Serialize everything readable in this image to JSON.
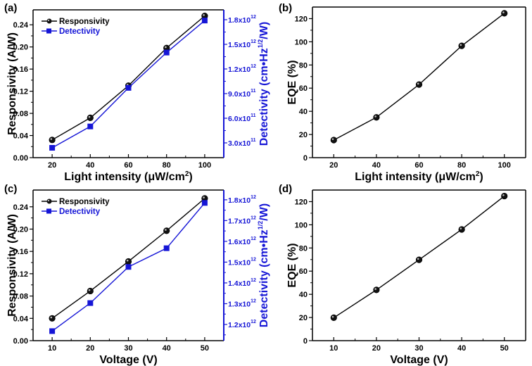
{
  "figure": {
    "description": "Four-panel photodetector performance figure"
  },
  "colors": {
    "responsivity": "#000000",
    "detectivity": "#1515d6",
    "eqe": "#000000",
    "axis": "#000000",
    "right_axis": "#1515d6"
  },
  "chart_data": [
    {
      "id": "a",
      "panel_label": "(a)",
      "type": "line",
      "xlabel": "Light intensity (μW/cm²)",
      "ylabel": "Responsivity (A/W)",
      "y2label": "Detectivity (cm•Hz¹ᐟ²/W)",
      "xlim": [
        10,
        110
      ],
      "ylim": [
        0,
        0.267
      ],
      "y2lim": [
        120000000000.0,
        1920000000000.0
      ],
      "xticks": [
        20,
        40,
        60,
        80,
        100
      ],
      "xtick_labels": [
        "20",
        "40",
        "60",
        "80",
        "100"
      ],
      "xminor": [
        30,
        50,
        70,
        90
      ],
      "yticks": [
        0,
        0.04,
        0.08,
        0.12,
        0.16,
        0.2,
        0.24
      ],
      "ytick_labels": [
        "0.00",
        "0.04",
        "0.08",
        "0.12",
        "0.16",
        "0.20",
        "0.24"
      ],
      "yminor": [
        0.02,
        0.06,
        0.1,
        0.14,
        0.18,
        0.22
      ],
      "y2ticks": [
        300000000000.0,
        600000000000.0,
        900000000000.0,
        1200000000000.0,
        1500000000000.0,
        1800000000000.0
      ],
      "y2tick_labels": [
        [
          "3.0x10",
          "11"
        ],
        [
          "6.0x10",
          "11"
        ],
        [
          "9.0x10",
          "11"
        ],
        [
          "1.2x10",
          "12"
        ],
        [
          "1.5x10",
          "12"
        ],
        [
          "1.8x10",
          "12"
        ]
      ],
      "y2minor": [
        450000000000.0,
        750000000000.0,
        1050000000000.0,
        1350000000000.0,
        1650000000000.0
      ],
      "legend": [
        "Responsivity",
        "Detectivity"
      ],
      "legend_position": "top-left",
      "grid": false,
      "series": [
        {
          "name": "Responsivity",
          "axis": "left",
          "marker": "circle",
          "x": [
            20,
            40,
            60,
            80,
            100
          ],
          "values": [
            0.032,
            0.072,
            0.13,
            0.198,
            0.256
          ]
        },
        {
          "name": "Detectivity",
          "axis": "right",
          "marker": "square",
          "x": [
            20,
            40,
            60,
            80,
            100
          ],
          "values": [
            240000000000.0,
            500000000000.0,
            970000000000.0,
            1400000000000.0,
            1790000000000.0
          ]
        }
      ]
    },
    {
      "id": "b",
      "panel_label": "(b)",
      "type": "line",
      "xlabel": "Light intensity (μW/cm²)",
      "ylabel": "EQE (%)",
      "xlim": [
        10,
        110
      ],
      "ylim": [
        0,
        130
      ],
      "xticks": [
        20,
        40,
        60,
        80,
        100
      ],
      "xtick_labels": [
        "20",
        "40",
        "60",
        "80",
        "100"
      ],
      "xminor": [
        30,
        50,
        70,
        90
      ],
      "yticks": [
        0,
        20,
        40,
        60,
        80,
        100,
        120
      ],
      "ytick_labels": [
        "0",
        "20",
        "40",
        "60",
        "80",
        "100",
        "120"
      ],
      "yminor": [
        10,
        30,
        50,
        70,
        90,
        110
      ],
      "grid": false,
      "series": [
        {
          "name": "EQE",
          "axis": "left",
          "marker": "circle",
          "x": [
            20,
            40,
            60,
            80,
            100
          ],
          "values": [
            15.2,
            34.8,
            63.1,
            96.5,
            124.6
          ]
        }
      ]
    },
    {
      "id": "c",
      "panel_label": "(c)",
      "type": "line",
      "xlabel": "Voltage (V)",
      "ylabel": "Responsivity (A/W)",
      "y2label": "Detectivity (cm•Hz¹ᐟ²/W)",
      "xlim": [
        5,
        55
      ],
      "ylim": [
        0,
        0.27
      ],
      "y2lim": [
        1122000000000.0,
        1847000000000.0
      ],
      "xticks": [
        10,
        20,
        30,
        40,
        50
      ],
      "xtick_labels": [
        "10",
        "20",
        "30",
        "40",
        "50"
      ],
      "xminor": [
        15,
        25,
        35,
        45
      ],
      "yticks": [
        0,
        0.04,
        0.08,
        0.12,
        0.16,
        0.2,
        0.24
      ],
      "ytick_labels": [
        "0.00",
        "0.04",
        "0.08",
        "0.12",
        "0.16",
        "0.20",
        "0.24"
      ],
      "yminor": [
        0.02,
        0.06,
        0.1,
        0.14,
        0.18,
        0.22
      ],
      "y2ticks": [
        1200000000000.0,
        1300000000000.0,
        1400000000000.0,
        1500000000000.0,
        1600000000000.0,
        1700000000000.0,
        1800000000000.0
      ],
      "y2tick_labels": [
        [
          "1.2x10",
          "12"
        ],
        [
          "1.3x10",
          "12"
        ],
        [
          "1.4x10",
          "12"
        ],
        [
          "1.5x10",
          "12"
        ],
        [
          "1.6x10",
          "12"
        ],
        [
          "1.7x10",
          "12"
        ],
        [
          "1.8x10",
          "12"
        ]
      ],
      "y2minor": [
        1150000000000.0,
        1250000000000.0,
        1350000000000.0,
        1450000000000.0,
        1550000000000.0,
        1650000000000.0,
        1750000000000.0
      ],
      "legend": [
        "Responsivity",
        "Detectivity"
      ],
      "legend_position": "top-left",
      "grid": false,
      "series": [
        {
          "name": "Responsivity",
          "axis": "left",
          "marker": "circle",
          "x": [
            10,
            20,
            30,
            40,
            50
          ],
          "values": [
            0.04,
            0.089,
            0.142,
            0.197,
            0.255
          ]
        },
        {
          "name": "Detectivity",
          "axis": "right",
          "marker": "square",
          "x": [
            10,
            20,
            30,
            40,
            50
          ],
          "values": [
            1168000000000.0,
            1303000000000.0,
            1477000000000.0,
            1567000000000.0,
            1785000000000.0
          ]
        }
      ]
    },
    {
      "id": "d",
      "panel_label": "(d)",
      "type": "line",
      "xlabel": "Voltage (V)",
      "ylabel": "EQE (%)",
      "xlim": [
        5,
        55
      ],
      "ylim": [
        0,
        130
      ],
      "xticks": [
        10,
        20,
        30,
        40,
        50
      ],
      "xtick_labels": [
        "10",
        "20",
        "30",
        "40",
        "50"
      ],
      "xminor": [
        15,
        25,
        35,
        45
      ],
      "yticks": [
        0,
        20,
        40,
        60,
        80,
        100,
        120
      ],
      "ytick_labels": [
        "0",
        "20",
        "40",
        "60",
        "80",
        "100",
        "120"
      ],
      "yminor": [
        10,
        30,
        50,
        70,
        90,
        110
      ],
      "grid": false,
      "series": [
        {
          "name": "EQE",
          "axis": "left",
          "marker": "circle",
          "x": [
            10,
            20,
            30,
            40,
            50
          ],
          "values": [
            19.8,
            43.8,
            69.8,
            96.0,
            124.8
          ]
        }
      ]
    }
  ]
}
